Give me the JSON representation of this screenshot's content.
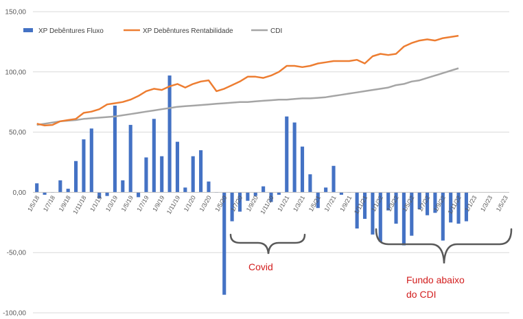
{
  "chart_data": {
    "type": "bar-line",
    "title": "",
    "xlabel": "",
    "ylabel": "",
    "ylim": [
      -100,
      150
    ],
    "y_ticks": [
      "150,00",
      "100,00",
      "50,00",
      "0,00",
      "-50,00",
      "-100,00"
    ],
    "y_tick_values": [
      150,
      100,
      50,
      0,
      -50,
      -100
    ],
    "grid": "horizontal",
    "legend_position": "top-left",
    "categories": [
      "1/5/18",
      "1/6/18",
      "1/7/18",
      "1/8/18",
      "1/9/18",
      "1/10/18",
      "1/11/18",
      "1/12/18",
      "1/1/19",
      "1/2/19",
      "1/3/19",
      "1/4/19",
      "1/5/19",
      "1/6/19",
      "1/7/19",
      "1/8/19",
      "1/9/19",
      "1/10/19",
      "1/11/19",
      "1/12/19",
      "1/1/20",
      "1/2/20",
      "1/3/20",
      "1/4/20",
      "1/5/20",
      "1/6/20",
      "1/7/20",
      "1/8/20",
      "1/9/20",
      "1/10/20",
      "1/11/20",
      "1/12/20",
      "1/1/21",
      "1/2/21",
      "1/3/21",
      "1/4/21",
      "1/5/21",
      "1/6/21",
      "1/7/21",
      "1/8/21",
      "1/9/21",
      "1/10/21",
      "1/11/21",
      "1/12/21",
      "1/1/22",
      "1/2/22",
      "1/3/22",
      "1/4/22",
      "1/5/22",
      "1/6/22",
      "1/7/22",
      "1/8/22",
      "1/9/22",
      "1/10/22",
      "1/11/22",
      "1/12/22",
      "1/1/23",
      "1/2/23",
      "1/3/23",
      "1/4/23",
      "1/5/23"
    ],
    "x_tick_labels": [
      "1/5/18",
      "1/7/18",
      "1/9/18",
      "1/11/18",
      "1/1/19",
      "1/3/19",
      "1/5/19",
      "1/7/19",
      "1/9/19",
      "1/11/19",
      "1/1/20",
      "1/3/20",
      "1/5/20",
      "1/7/20",
      "1/9/20",
      "1/11/20",
      "1/1/21",
      "1/3/21",
      "1/5/21",
      "1/7/21",
      "1/9/21",
      "1/11/21",
      "1/1/22",
      "1/3/22",
      "1/5/22",
      "1/7/22",
      "1/9/22",
      "1/11/22",
      "1/1/23",
      "1/3/23",
      "1/5/23"
    ],
    "series": [
      {
        "name": "XP Debêntures Fluxo",
        "type": "bar",
        "color": "#4472C4",
        "values": [
          7.5,
          -2,
          0,
          10,
          3,
          26,
          44,
          53,
          -5,
          -3,
          72,
          10,
          56,
          -4,
          29,
          61,
          30,
          97,
          42,
          4,
          30,
          35,
          9,
          0,
          -85,
          -24,
          -16,
          -7,
          -3,
          5,
          -8,
          -2,
          63,
          58,
          38,
          15,
          -13,
          4,
          22,
          -2,
          0,
          -30,
          -22,
          -35,
          -41,
          -15,
          -26,
          -44,
          -36,
          -14,
          -19,
          -17,
          -40,
          -25,
          -26,
          -24,
          null,
          null,
          null,
          null,
          null
        ]
      },
      {
        "name": "XP Debêntures Rentabilidade",
        "type": "line",
        "color": "#ED7D31",
        "values": [
          57,
          55.5,
          56,
          59,
          60,
          61,
          66,
          67,
          69,
          73,
          74,
          75,
          77,
          80,
          84,
          86,
          85,
          88,
          90,
          87,
          90,
          92,
          93,
          84,
          86,
          89,
          92,
          96,
          96,
          95,
          97,
          100,
          105,
          105,
          104,
          105,
          107,
          108,
          109,
          109,
          109,
          110,
          107,
          113,
          115,
          114,
          115,
          121,
          124,
          126,
          127,
          126,
          128,
          129,
          130,
          null,
          null,
          null,
          null,
          null,
          null
        ]
      },
      {
        "name": "CDI",
        "type": "line",
        "color": "#A5A5A5",
        "values": [
          56,
          57,
          58,
          59,
          59.5,
          60,
          61,
          61.5,
          62,
          62.5,
          63,
          64,
          65,
          66,
          67,
          68,
          69,
          70,
          71,
          71.5,
          72,
          72.5,
          73,
          73.5,
          74,
          74.5,
          75,
          75,
          75.5,
          76,
          76.5,
          77,
          77,
          77.5,
          78,
          78,
          78.5,
          79,
          80,
          81,
          82,
          83,
          84,
          85,
          86,
          87,
          89,
          90,
          92,
          93,
          95,
          97,
          99,
          101,
          103,
          null,
          null,
          null,
          null,
          null,
          null
        ]
      }
    ],
    "annotations": [
      {
        "text": "Covid"
      },
      {
        "text": "Fundo abaixo"
      },
      {
        "text": "do CDI"
      }
    ]
  }
}
